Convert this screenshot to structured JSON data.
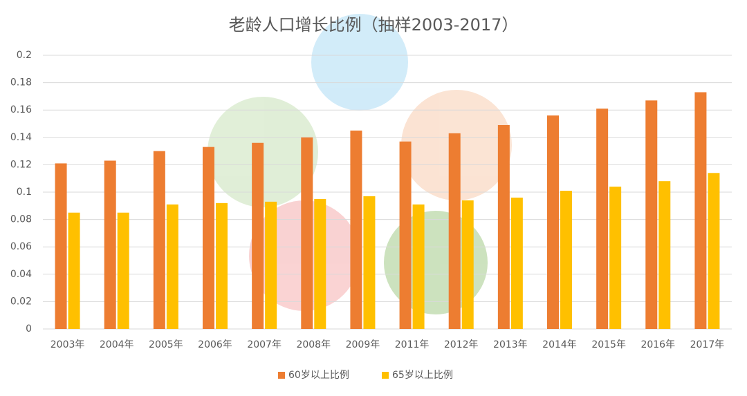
{
  "chart_data": {
    "type": "bar",
    "title": "老龄人口增长比例（抽样2003-2017）",
    "categories": [
      "2003年",
      "2004年",
      "2005年",
      "2006年",
      "2007年",
      "2008年",
      "2009年",
      "2011年",
      "2012年",
      "2013年",
      "2014年",
      "2015年",
      "2016年",
      "2017年"
    ],
    "series": [
      {
        "name": "60岁以上比例",
        "color": "#ed7d31",
        "values": [
          0.121,
          0.123,
          0.13,
          0.133,
          0.136,
          0.14,
          0.145,
          0.137,
          0.143,
          0.149,
          0.156,
          0.161,
          0.167,
          0.173
        ]
      },
      {
        "name": "65岁以上比例",
        "color": "#ffc000",
        "values": [
          0.085,
          0.085,
          0.091,
          0.092,
          0.093,
          0.095,
          0.097,
          0.091,
          0.094,
          0.096,
          0.101,
          0.104,
          0.108,
          0.114
        ]
      }
    ],
    "ylim": [
      0,
      0.2
    ],
    "yticks": [
      0,
      0.02,
      0.04,
      0.06,
      0.08,
      0.1,
      0.12,
      0.14,
      0.16,
      0.18,
      0.2
    ],
    "grid": true,
    "legend": "bottom"
  }
}
